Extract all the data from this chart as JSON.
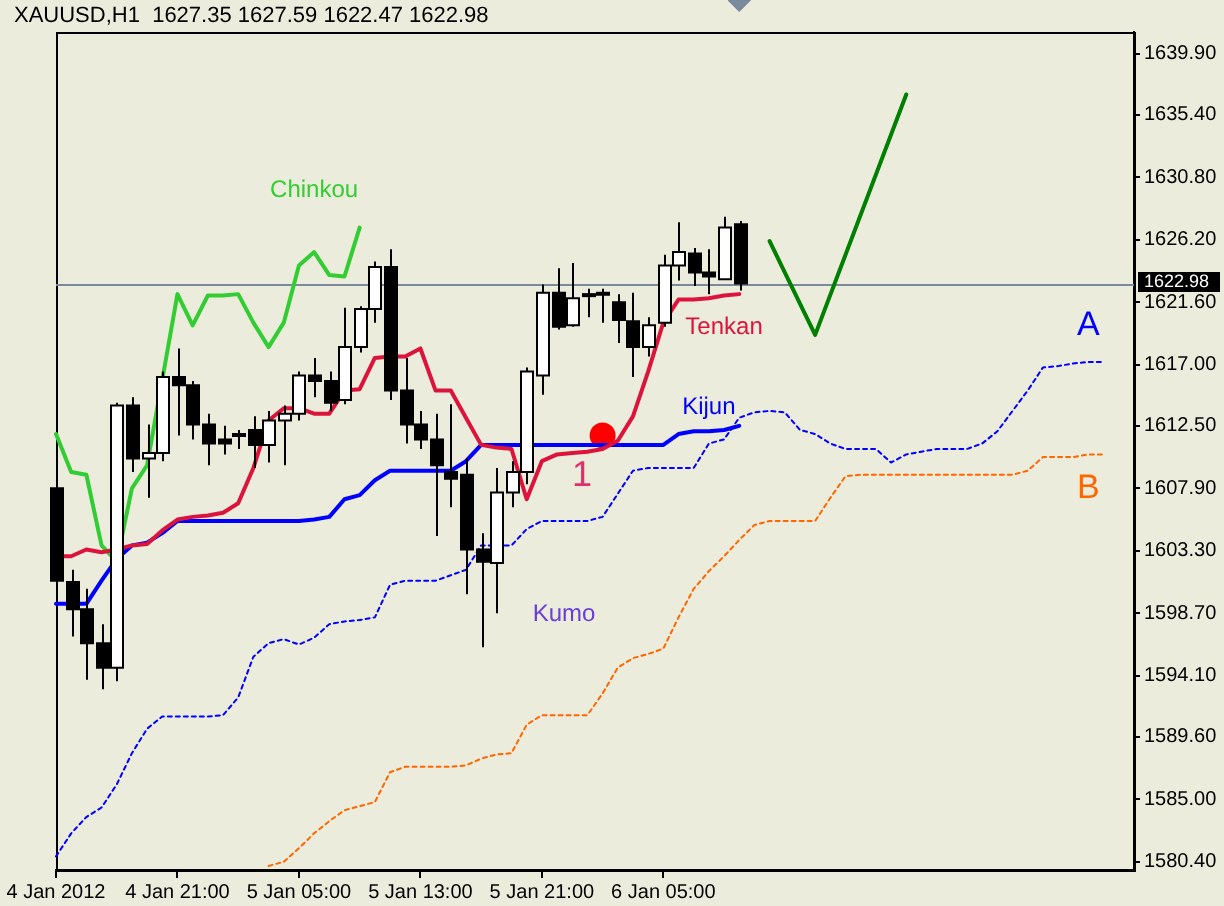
{
  "chart_data": {
    "type": "candlestick",
    "title": "XAUUSD,H1  1627.35 1627.59 1622.47 1622.98",
    "categories": [
      "4 Jan 2012",
      null,
      null,
      null,
      null,
      null,
      null,
      null,
      "4 Jan 21:00",
      null,
      null,
      null,
      null,
      null,
      null,
      null,
      "5 Jan 05:00",
      null,
      null,
      null,
      null,
      null,
      null,
      null,
      "5 Jan 13:00",
      null,
      null,
      null,
      null,
      null,
      null,
      null,
      "5 Jan 21:00",
      null,
      null,
      null,
      null,
      null,
      null,
      null,
      "6 Jan 05:00",
      null,
      null,
      null,
      null,
      null,
      null,
      null,
      null,
      null,
      null,
      null,
      null,
      null,
      null,
      null,
      null,
      null,
      null,
      null,
      null,
      null,
      null,
      null,
      null,
      null,
      null,
      null,
      null,
      null,
      null,
      null
    ],
    "ohlc": [
      [
        1607.9,
        1608.6,
        1600.1,
        1601.1
      ],
      [
        1601.0,
        1601.9,
        1597.0,
        1599.0
      ],
      [
        1599.0,
        1600.5,
        1593.8,
        1596.5
      ],
      [
        1596.5,
        1597.9,
        1593.1,
        1594.7
      ],
      [
        1594.7,
        1614.2,
        1593.7,
        1614.0
      ],
      [
        1614.0,
        1614.6,
        1609.1,
        1610.1
      ],
      [
        1610.1,
        1612.6,
        1607.2,
        1610.5
      ],
      [
        1610.5,
        1616.5,
        1609.9,
        1616.1
      ],
      [
        1616.1,
        1618.2,
        1611.8,
        1615.5
      ],
      [
        1615.5,
        1615.8,
        1611.5,
        1612.6
      ],
      [
        1612.6,
        1613.4,
        1609.6,
        1611.2
      ],
      [
        1611.5,
        1612.5,
        1610.4,
        1611.2
      ],
      [
        1611.9,
        1612.2,
        1610.8,
        1611.8
      ],
      [
        1612.2,
        1613.2,
        1609.4,
        1611.1
      ],
      [
        1611.1,
        1613.6,
        1609.8,
        1612.9
      ],
      [
        1612.9,
        1614.0,
        1609.6,
        1613.4
      ],
      [
        1613.4,
        1616.5,
        1612.9,
        1616.2
      ],
      [
        1616.2,
        1617.5,
        1614.6,
        1615.8
      ],
      [
        1615.8,
        1616.5,
        1613.6,
        1614.2
      ],
      [
        1614.4,
        1621.2,
        1614.1,
        1618.3
      ],
      [
        1618.3,
        1621.3,
        1617.9,
        1621.1
      ],
      [
        1621.1,
        1624.6,
        1620.1,
        1624.2
      ],
      [
        1624.2,
        1625.5,
        1614.4,
        1615.1
      ],
      [
        1615.1,
        1617.5,
        1611.2,
        1612.6
      ],
      [
        1612.6,
        1613.6,
        1610.8,
        1611.5
      ],
      [
        1611.5,
        1613.4,
        1604.4,
        1609.6
      ],
      [
        1609.1,
        1614.1,
        1606.5,
        1608.6
      ],
      [
        1608.9,
        1610.1,
        1600.1,
        1603.4
      ],
      [
        1603.4,
        1604.6,
        1596.2,
        1602.5
      ],
      [
        1602.4,
        1609.4,
        1598.7,
        1607.6
      ],
      [
        1607.6,
        1609.9,
        1606.5,
        1609.1
      ],
      [
        1609.1,
        1616.8,
        1608.2,
        1616.5
      ],
      [
        1616.2,
        1622.9,
        1614.8,
        1622.3
      ],
      [
        1622.3,
        1624.1,
        1619.6,
        1619.8
      ],
      [
        1619.9,
        1624.5,
        1619.8,
        1621.9
      ],
      [
        1622.2,
        1622.6,
        1620.5,
        1622.1
      ],
      [
        1622.3,
        1622.6,
        1620.1,
        1622.2
      ],
      [
        1621.6,
        1622.2,
        1618.6,
        1620.3
      ],
      [
        1620.2,
        1622.3,
        1616.1,
        1618.3
      ],
      [
        1618.3,
        1620.5,
        1617.6,
        1619.9
      ],
      [
        1620.1,
        1625.1,
        1619.8,
        1624.3
      ],
      [
        1624.3,
        1627.5,
        1623.2,
        1625.3
      ],
      [
        1625.2,
        1625.6,
        1622.8,
        1623.8
      ],
      [
        1623.8,
        1625.5,
        1622.2,
        1623.5
      ],
      [
        1623.3,
        1627.9,
        1623.3,
        1627.1
      ],
      [
        1627.35,
        1627.59,
        1622.47,
        1622.98
      ],
      null,
      null,
      null,
      null,
      null,
      null,
      null,
      null,
      null,
      null,
      null,
      null,
      null,
      null,
      null,
      null,
      null,
      null,
      null,
      null,
      null,
      null,
      null,
      null,
      null,
      null
    ],
    "series": [
      {
        "name": "Tenkan",
        "type": "line",
        "color": "#dc143c",
        "values": [
          1602.9,
          1602.9,
          1603.4,
          1603.2,
          1603.4,
          1603.7,
          1603.8,
          1604.8,
          1605.6,
          1605.8,
          1605.9,
          1606.1,
          1606.8,
          1609.4,
          1612.9,
          1613.8,
          1613.8,
          1613.4,
          1613.4,
          1615.1,
          1615.2,
          1617.5,
          1617.6,
          1617.6,
          1618.2,
          1615.1,
          1615.1,
          1613.1,
          1611.1,
          1610.9,
          1610.8,
          1607.1,
          1609.9,
          1610.4,
          1610.5,
          1610.6,
          1610.8,
          1611.4,
          1613.2,
          1616.5,
          1620.1,
          1621.8,
          1621.8,
          1621.9,
          1622.1,
          1622.2,
          null,
          null,
          null,
          null,
          null,
          null,
          null,
          null,
          null,
          null,
          null,
          null,
          null,
          null,
          null,
          null,
          null,
          null,
          null,
          null,
          null,
          null,
          null,
          null,
          null,
          null
        ]
      },
      {
        "name": "Kijun",
        "type": "line",
        "color": "#0000ff",
        "values": [
          1599.4,
          1599.4,
          1599.4,
          1601.1,
          1602.7,
          1603.7,
          1603.9,
          1604.6,
          1605.5,
          1605.5,
          1605.5,
          1605.5,
          1605.5,
          1605.5,
          1605.5,
          1605.5,
          1605.5,
          1605.6,
          1605.8,
          1607.1,
          1607.4,
          1608.5,
          1609.2,
          1609.2,
          1609.2,
          1609.2,
          1609.2,
          1609.9,
          1611.1,
          1611.1,
          1611.1,
          1611.1,
          1611.1,
          1611.1,
          1611.1,
          1611.1,
          1611.1,
          1611.1,
          1611.1,
          1611.1,
          1611.1,
          1611.9,
          1612.1,
          1612.1,
          1612.2,
          1612.5,
          null,
          null,
          null,
          null,
          null,
          null,
          null,
          null,
          null,
          null,
          null,
          null,
          null,
          null,
          null,
          null,
          null,
          null,
          null,
          null,
          null,
          null,
          null,
          null,
          null,
          null
        ]
      },
      {
        "name": "Chinkou",
        "type": "line",
        "color": "#32cd32",
        "values": [
          1611.9,
          1609.1,
          1608.9,
          1603.7,
          1602.5,
          1607.9,
          1609.6,
          null,
          1622.2,
          1619.9,
          1622.1,
          1622.1,
          1622.2,
          1620.1,
          1618.3,
          1620.1,
          1624.3,
          1625.3,
          1623.6,
          1623.5,
          1627.1,
          null,
          null,
          null,
          null,
          null,
          null,
          null,
          null,
          null,
          null,
          null,
          null,
          null,
          null,
          null,
          null,
          null,
          null,
          null,
          null,
          null,
          null,
          null,
          null,
          null,
          null,
          null,
          null,
          null,
          null,
          null,
          null,
          null,
          null,
          null,
          null,
          null,
          null,
          null,
          null,
          null,
          null,
          null,
          null,
          null,
          null,
          null,
          null,
          null,
          null,
          null
        ]
      },
      {
        "name": "A",
        "type": "line",
        "line_style": "dotted",
        "color": "#0000ff",
        "values": [
          1580.8,
          1582.5,
          1583.7,
          1584.4,
          1586.1,
          1588.4,
          1590.2,
          1591.1,
          1591.1,
          1591.1,
          1591.1,
          1591.2,
          1592.5,
          1595.5,
          1596.5,
          1596.8,
          1596.4,
          1596.9,
          1597.9,
          1598.1,
          1598.2,
          1598.4,
          1600.8,
          1601.1,
          1601.1,
          1601.1,
          1601.5,
          1601.9,
          1603.7,
          1603.7,
          1603.7,
          1604.9,
          1605.5,
          1605.5,
          1605.5,
          1605.5,
          1605.8,
          1607.5,
          1609.2,
          1609.4,
          1609.4,
          1609.4,
          1609.4,
          1611.2,
          1611.5,
          1613.1,
          1613.5,
          1613.6,
          1613.5,
          1612.2,
          1611.9,
          1611.2,
          1610.8,
          1610.8,
          1610.8,
          1609.8,
          1610.4,
          1610.6,
          1610.8,
          1610.8,
          1610.8,
          1611.2,
          1612.1,
          1613.6,
          1615.1,
          1616.8,
          1616.9,
          1617.1,
          1617.2,
          1617.2,
          null,
          null
        ]
      },
      {
        "name": "B",
        "type": "line",
        "line_style": "dotted",
        "color": "#ff6600",
        "values": [
          null,
          null,
          null,
          null,
          null,
          null,
          null,
          null,
          null,
          null,
          null,
          null,
          null,
          null,
          1580.1,
          1580.4,
          1581.4,
          1582.5,
          1583.4,
          1584.2,
          1584.5,
          1584.8,
          1587.0,
          1587.4,
          1587.4,
          1587.4,
          1587.4,
          1587.5,
          1588.0,
          1588.3,
          1588.4,
          1590.5,
          1591.2,
          1591.2,
          1591.2,
          1591.2,
          1592.8,
          1594.7,
          1595.4,
          1595.7,
          1596.1,
          1598.4,
          1600.5,
          1601.8,
          1602.9,
          1604.1,
          1605.2,
          1605.5,
          1605.5,
          1605.5,
          1605.5,
          1607.2,
          1608.8,
          1608.9,
          1608.9,
          1608.9,
          1608.9,
          1608.9,
          1608.9,
          1608.9,
          1608.9,
          1608.9,
          1608.9,
          1608.9,
          1609.2,
          1610.2,
          1610.2,
          1610.2,
          1610.4,
          1610.4,
          null,
          null
        ]
      },
      {
        "type": "line",
        "color": "#008000",
        "values": [
          null,
          null,
          null,
          null,
          null,
          null,
          null,
          null,
          null,
          null,
          null,
          null,
          null,
          null,
          null,
          null,
          null,
          null,
          null,
          null,
          null,
          null,
          null,
          null,
          null,
          null,
          null,
          null,
          null,
          null,
          null,
          null,
          null,
          null,
          null,
          null,
          null,
          null,
          null,
          null,
          null,
          null,
          null,
          null,
          null,
          null,
          null,
          1626.1,
          null,
          null,
          1619.2,
          null,
          null,
          null,
          null,
          null,
          1636.9,
          null,
          null,
          null,
          null,
          null,
          null,
          null,
          null,
          null,
          null,
          null,
          null,
          null,
          null,
          null
        ]
      },
      {
        "type": "scatter",
        "marker": "circle",
        "color": "#ff0000",
        "values": [
          null,
          null,
          null,
          null,
          null,
          null,
          null,
          null,
          null,
          null,
          null,
          null,
          null,
          null,
          null,
          null,
          null,
          null,
          null,
          null,
          null,
          null,
          null,
          null,
          null,
          null,
          null,
          null,
          null,
          null,
          null,
          null,
          null,
          null,
          null,
          null,
          1611.8,
          null,
          null,
          null,
          null,
          null,
          null,
          null,
          null,
          null,
          null,
          null,
          null,
          null,
          null,
          null,
          null,
          null,
          null,
          null,
          null,
          null,
          null,
          null,
          null,
          null,
          null,
          null,
          null,
          null,
          null,
          null,
          null,
          null,
          null,
          null
        ]
      }
    ],
    "annotations": [
      "Kumo",
      "1"
    ],
    "ref_lines": [
      {
        "axis": "y",
        "value": 1622.98,
        "label": "1622.98",
        "color": "#7a8a9c"
      }
    ],
    "ylim": [
      1579.8,
      1641.5
    ],
    "yticks": [
      {
        "value": 1639.9,
        "label": "1639.90"
      },
      {
        "value": 1635.4,
        "label": "1635.40"
      },
      {
        "value": 1630.8,
        "label": "1630.80"
      },
      {
        "value": 1626.2,
        "label": "1626.20"
      },
      {
        "value": 1621.6,
        "label": "1621.60"
      },
      {
        "value": 1617,
        "label": "1617.00"
      },
      {
        "value": 1612.5,
        "label": "1612.50"
      },
      {
        "value": 1607.9,
        "label": "1607.90"
      },
      {
        "value": 1603.3,
        "label": "1603.30"
      },
      {
        "value": 1598.7,
        "label": "1598.70"
      },
      {
        "value": 1594.1,
        "label": "1594.10"
      },
      {
        "value": 1589.6,
        "label": "1589.60"
      },
      {
        "value": 1585,
        "label": "1585.00"
      },
      {
        "value": 1580.4,
        "label": "1580.40"
      }
    ],
    "grid": false,
    "legend": false
  }
}
